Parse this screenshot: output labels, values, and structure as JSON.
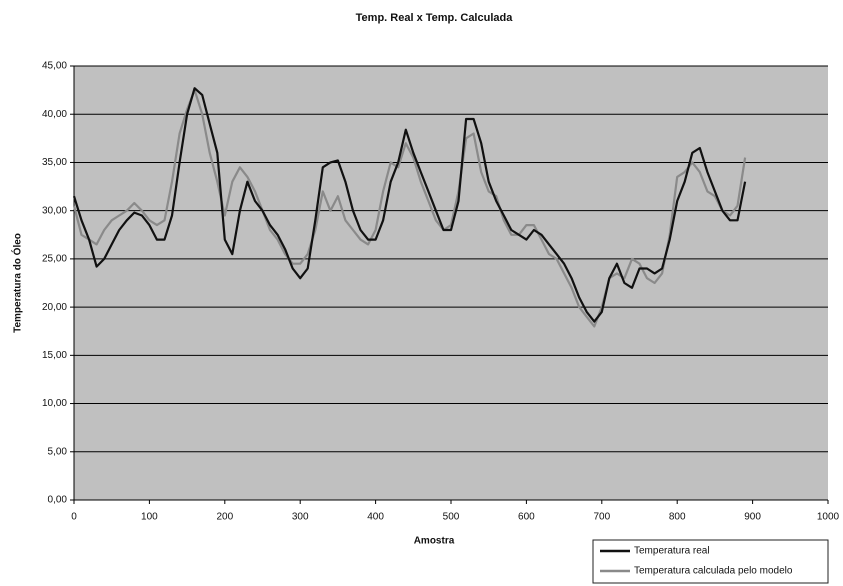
{
  "chart_data": {
    "type": "line",
    "title": "Temp. Real x Temp. Calculada",
    "xlabel": "Amostra",
    "ylabel": "Temperatura do Óleo",
    "x": [
      0,
      10,
      20,
      30,
      40,
      50,
      60,
      70,
      80,
      90,
      100,
      110,
      120,
      130,
      140,
      150,
      160,
      170,
      180,
      190,
      200,
      210,
      220,
      230,
      240,
      250,
      260,
      270,
      280,
      290,
      300,
      310,
      320,
      330,
      340,
      350,
      360,
      370,
      380,
      390,
      400,
      410,
      420,
      430,
      440,
      450,
      460,
      470,
      480,
      490,
      500,
      510,
      520,
      530,
      540,
      550,
      560,
      570,
      580,
      590,
      600,
      610,
      620,
      630,
      640,
      650,
      660,
      670,
      680,
      690,
      700,
      710,
      720,
      730,
      740,
      750,
      760,
      770,
      780,
      790,
      800,
      810,
      820,
      830,
      840,
      850,
      860,
      870,
      880,
      890
    ],
    "series": [
      {
        "name": "Temperatura real",
        "color": "#111111",
        "values": [
          31.5,
          29,
          27,
          24.2,
          25,
          26.5,
          28,
          29,
          29.8,
          29.5,
          28.5,
          27,
          27,
          29.5,
          35,
          40,
          42.7,
          42,
          39,
          36,
          27,
          25.5,
          30,
          33,
          31,
          30,
          28.5,
          27.5,
          26,
          24,
          23,
          24,
          29,
          34.5,
          35,
          35.2,
          33,
          30,
          28,
          27,
          27,
          29,
          33,
          35,
          38.4,
          36,
          34,
          32,
          30,
          28,
          28,
          31,
          39.5,
          39.5,
          37,
          33,
          31,
          29.5,
          28,
          27.5,
          27,
          28,
          27.5,
          26.5,
          25.5,
          24.5,
          23,
          21,
          19.5,
          18.5,
          19.5,
          23,
          24.5,
          22.5,
          22,
          24,
          24,
          23.5,
          24,
          27,
          31,
          33,
          36,
          36.5,
          34,
          32,
          30,
          29,
          29,
          33
        ]
      },
      {
        "name": "Temperatura calculada pelo modelo",
        "color": "#8a8a8a",
        "values": [
          30.5,
          27.5,
          27,
          26.5,
          28,
          29,
          29.5,
          30,
          30.8,
          30,
          29,
          28.5,
          29,
          33,
          38,
          40.5,
          42.5,
          40,
          36,
          33,
          29.5,
          33,
          34.5,
          33.5,
          32,
          30,
          28,
          27,
          25.5,
          24.5,
          24.5,
          25.5,
          28,
          32,
          30,
          31.5,
          29,
          28,
          27,
          26.5,
          28,
          32,
          35,
          34.5,
          37,
          35.5,
          33,
          31,
          29,
          28,
          28.5,
          32,
          37.5,
          38,
          34,
          32,
          31.5,
          29,
          27.5,
          27.5,
          28.5,
          28.5,
          27,
          25.5,
          25,
          23.5,
          22,
          20,
          19,
          18,
          20,
          23,
          23.5,
          23,
          25,
          24.5,
          23,
          22.5,
          23.5,
          27.5,
          33.5,
          34,
          35,
          34,
          32,
          31.5,
          30,
          29.5,
          30.5,
          35.5
        ]
      }
    ],
    "xlim": [
      0,
      1000
    ],
    "xticks": [
      0,
      100,
      200,
      300,
      400,
      500,
      600,
      700,
      800,
      900,
      1000
    ],
    "ylim": [
      0,
      45
    ],
    "yticks": [
      {
        "value": 0,
        "label": "0,00"
      },
      {
        "value": 5,
        "label": "5,00"
      },
      {
        "value": 10,
        "label": "10,00"
      },
      {
        "value": 15,
        "label": "15,00"
      },
      {
        "value": 20,
        "label": "20,00"
      },
      {
        "value": 25,
        "label": "25,00"
      },
      {
        "value": 30,
        "label": "30,00"
      },
      {
        "value": 35,
        "label": "35,00"
      },
      {
        "value": 40,
        "label": "40,00"
      },
      {
        "value": 45,
        "label": "45,00"
      }
    ],
    "grid": true,
    "legend": "bottom-right"
  }
}
